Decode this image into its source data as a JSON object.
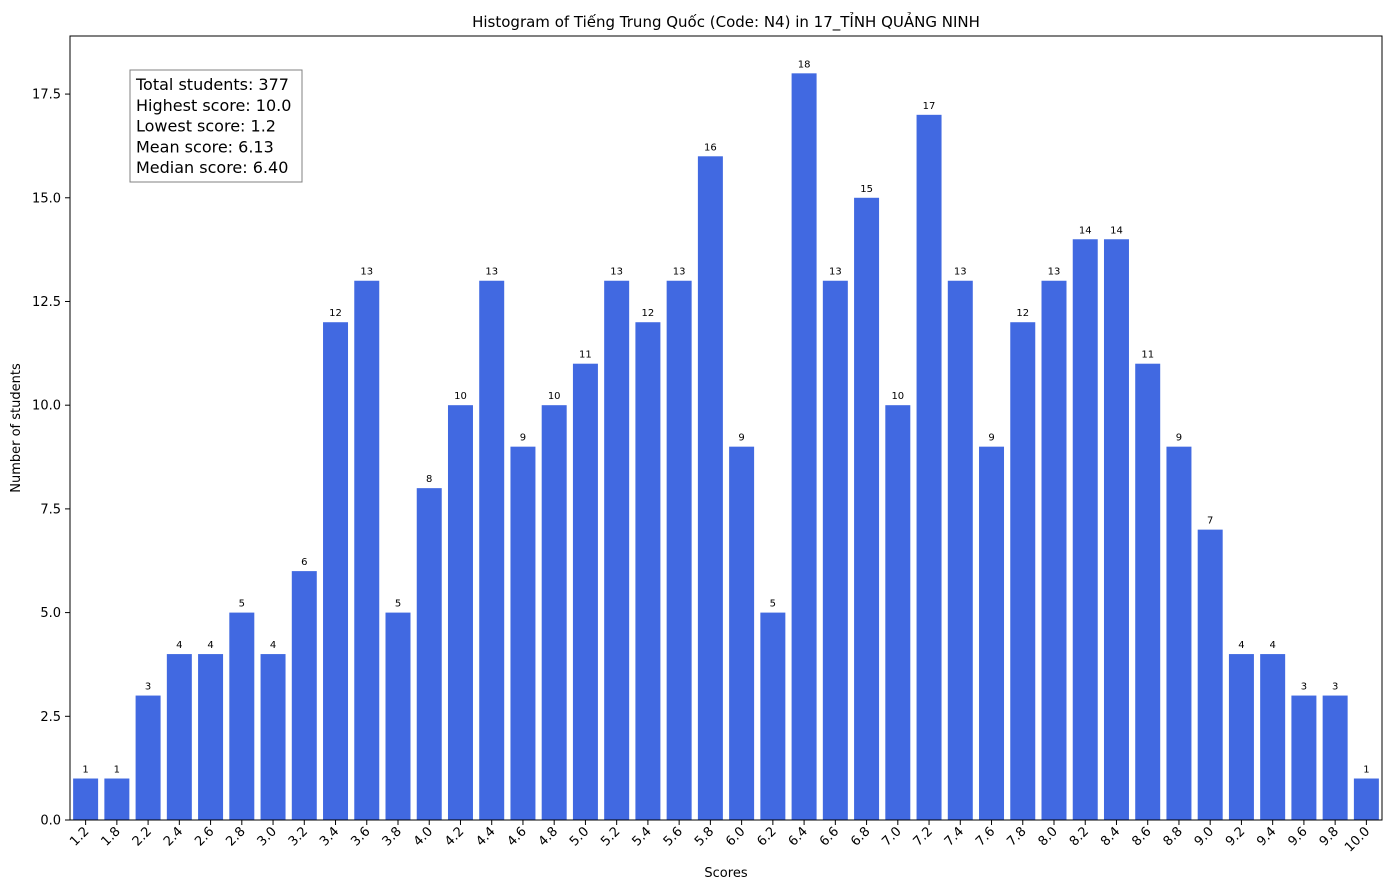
{
  "chart_data": {
    "type": "bar",
    "title": "Histogram of Tiếng Trung Quốc (Code: N4) in 17_TỈNH QUẢNG NINH",
    "xlabel": "Scores",
    "ylabel": "Number of students",
    "ylim": [
      0,
      18.9
    ],
    "yticks": [
      "0.0",
      "2.5",
      "5.0",
      "7.5",
      "10.0",
      "12.5",
      "15.0",
      "17.5"
    ],
    "ytick_values": [
      0,
      2.5,
      5,
      7.5,
      10,
      12.5,
      15,
      17.5
    ],
    "bar_color": "#4169e1",
    "grid": false,
    "categories": [
      "1.2",
      "1.8",
      "2.2",
      "2.4",
      "2.6",
      "2.8",
      "3.0",
      "3.2",
      "3.4",
      "3.6",
      "3.8",
      "4.0",
      "4.2",
      "4.4",
      "4.6",
      "4.8",
      "5.0",
      "5.2",
      "5.4",
      "5.6",
      "5.8",
      "6.0",
      "6.2",
      "6.4",
      "6.6",
      "6.8",
      "7.0",
      "7.2",
      "7.4",
      "7.6",
      "7.8",
      "8.0",
      "8.2",
      "8.4",
      "8.6",
      "8.8",
      "9.0",
      "9.2",
      "9.4",
      "9.6",
      "9.8",
      "10.0"
    ],
    "values": [
      1,
      1,
      3,
      4,
      4,
      5,
      4,
      6,
      12,
      13,
      5,
      8,
      10,
      13,
      9,
      10,
      11,
      13,
      12,
      13,
      16,
      9,
      5,
      18,
      13,
      15,
      10,
      17,
      13,
      9,
      12,
      13,
      14,
      14,
      11,
      9,
      7,
      4,
      4,
      3,
      3,
      1
    ],
    "annotation": {
      "placement": "top-left",
      "lines": [
        "Total students: 377",
        "Highest score: 10.0",
        "Lowest score: 1.2",
        "Mean score: 6.13",
        "Median score: 6.40"
      ]
    }
  }
}
